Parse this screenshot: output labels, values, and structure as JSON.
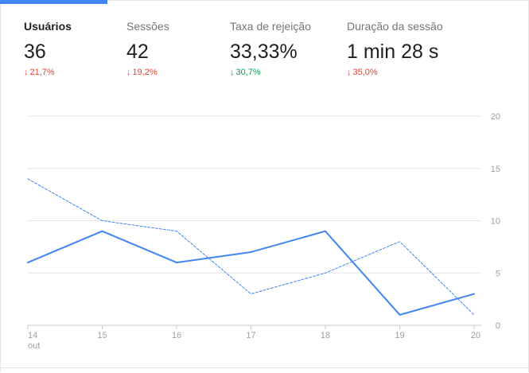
{
  "metrics": [
    {
      "id": "usuarios",
      "label": "Usuários",
      "value": "36",
      "change": "21,7%",
      "direction": "down",
      "active": true
    },
    {
      "id": "sessoes",
      "label": "Sessões",
      "value": "42",
      "change": "19,2%",
      "direction": "down",
      "active": false
    },
    {
      "id": "taxa",
      "label": "Taxa de rejeição",
      "value": "33,33%",
      "change": "30,7%",
      "direction": "up",
      "active": false
    },
    {
      "id": "duracao",
      "label": "Duração da sessão",
      "value": "1 min 28 s",
      "change": "35,0%",
      "direction": "down",
      "active": false
    }
  ],
  "colors": {
    "accent": "#4285f4",
    "negative": "#db4437",
    "positive": "#0f9d58"
  },
  "chart_data": {
    "type": "line",
    "categories": [
      "14",
      "15",
      "16",
      "17",
      "18",
      "19",
      "20"
    ],
    "x_sublabel": "out",
    "series": [
      {
        "style": "solid",
        "values": [
          6,
          9,
          6,
          7,
          9,
          1,
          3
        ]
      },
      {
        "style": "dashed",
        "values": [
          14,
          10,
          9,
          3,
          5,
          8,
          1
        ]
      }
    ],
    "yticks": [
      "0",
      "5",
      "10",
      "15",
      "20"
    ],
    "ylim": [
      0,
      20
    ],
    "grid": true,
    "y_axis_position": "right"
  }
}
